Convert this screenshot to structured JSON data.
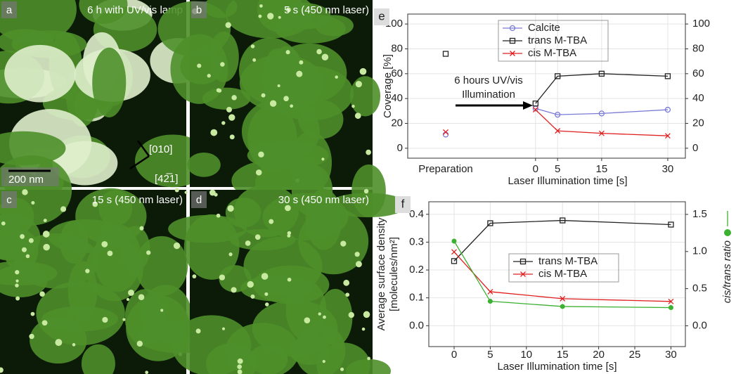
{
  "panels": [
    {
      "letter": "a",
      "caption": "6 h with UV/vis lamp",
      "scale_bar": "200 nm",
      "directions": [
        "[010]",
        "[42̅1]"
      ]
    },
    {
      "letter": "b",
      "caption": "5 s (450 nm laser)"
    },
    {
      "letter": "c",
      "caption": "15 s (450 nm laser)"
    },
    {
      "letter": "d",
      "caption": "30 s (450 nm laser)"
    }
  ],
  "chart_data": [
    {
      "type": "line",
      "letter": "e",
      "y_label": "Coverage [%]",
      "x_label": "Laser Illumination time [s]",
      "preparation_label": "Preparation",
      "annotation": [
        "6 hours UV/vis",
        "Illumination"
      ],
      "x": [
        0,
        5,
        15,
        30
      ],
      "xlim": [
        -29,
        34
      ],
      "xticks": [
        0,
        5,
        15,
        30
      ],
      "ylim": [
        -8,
        108
      ],
      "yticks": [
        0,
        20,
        40,
        60,
        80,
        100
      ],
      "y2lim": [
        -8,
        108
      ],
      "y2ticks": [
        0,
        20,
        40,
        60,
        80,
        100
      ],
      "grid": true,
      "series": [
        {
          "name": "Calcite",
          "color": "#7a7ad6",
          "marker": "circle",
          "preparation_value": 11,
          "values": [
            32,
            27,
            28,
            31
          ]
        },
        {
          "name": "trans M-TBA",
          "color": "#222222",
          "marker": "square",
          "preparation_value": 76,
          "values": [
            36,
            58,
            60,
            58
          ]
        },
        {
          "name": "cis M-TBA",
          "color": "#e02020",
          "marker": "cross",
          "preparation_value": 13,
          "values": [
            31,
            14,
            12,
            10
          ]
        }
      ]
    },
    {
      "type": "line",
      "letter": "f",
      "y_label": [
        "Average surface density",
        "[molecules/nm²]"
      ],
      "x_label": "Laser Illumination time [s]",
      "x": [
        0,
        5,
        15,
        30
      ],
      "xlim": [
        -3.5,
        32
      ],
      "xticks": [
        0,
        5,
        10,
        15,
        20,
        25,
        30
      ],
      "ylim": [
        -0.075,
        0.445
      ],
      "yticks": [
        {
          "value": 0,
          "label": "0.0"
        },
        0.1,
        0.2,
        0.3,
        0.4
      ],
      "y2lim": [
        -0.28,
        1.67
      ],
      "y2ticks": [
        {
          "value": 0,
          "label": "0.0"
        },
        0.5,
        {
          "value": 1,
          "label": "1.0"
        },
        1.5
      ],
      "grid": true,
      "series": [
        {
          "name": "trans M-TBA",
          "color": "#222222",
          "marker": "square",
          "values": [
            0.232,
            0.368,
            0.378,
            0.363
          ]
        },
        {
          "name": "cis M-TBA",
          "color": "#e02020",
          "marker": "cross",
          "values": [
            0.265,
            0.122,
            0.097,
            0.087
          ]
        },
        {
          "name": "cis/trans ratio",
          "color": "#3cb030",
          "marker": "dot",
          "axis": "y2",
          "values": [
            1.14,
            0.33,
            0.26,
            0.245
          ]
        }
      ]
    }
  ]
}
